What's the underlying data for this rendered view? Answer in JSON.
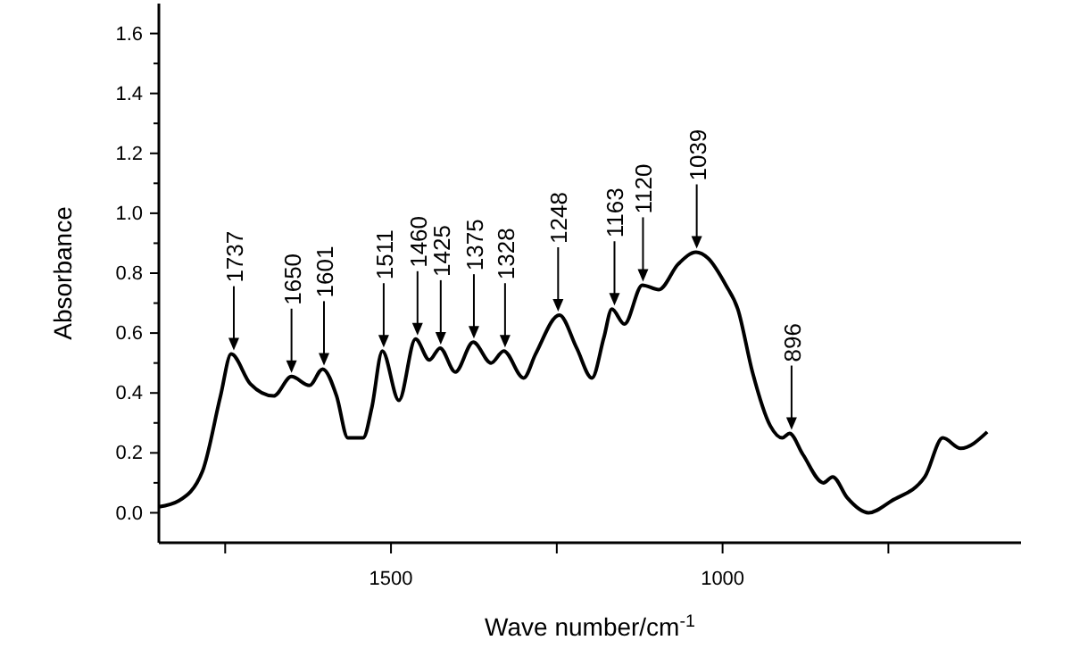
{
  "chart_data": {
    "type": "line",
    "xlabel": "Wave number/cm$^{-1}$",
    "ylabel": "Absorbance",
    "x": [
      1850,
      1820,
      1784,
      1757,
      1741,
      1712,
      1677,
      1650,
      1623,
      1603,
      1582,
      1565,
      1542,
      1529,
      1513,
      1488,
      1463,
      1442,
      1426,
      1403,
      1376,
      1349,
      1330,
      1300,
      1282,
      1246,
      1220,
      1197,
      1179,
      1167,
      1148,
      1121,
      1096,
      1067,
      1040,
      1022,
      995,
      977,
      955,
      928,
      910,
      899,
      879,
      848,
      834,
      812,
      780,
      745,
      695,
      668,
      641,
      601
    ],
    "series": [
      {
        "color": "#000000",
        "values": [
          0.02,
          0.04,
          0.14,
          0.39,
          0.53,
          0.43,
          0.39,
          0.455,
          0.425,
          0.48,
          0.39,
          0.25,
          0.25,
          0.35,
          0.54,
          0.375,
          0.58,
          0.51,
          0.55,
          0.47,
          0.57,
          0.5,
          0.54,
          0.45,
          0.53,
          0.66,
          0.55,
          0.45,
          0.585,
          0.68,
          0.63,
          0.76,
          0.745,
          0.83,
          0.87,
          0.85,
          0.76,
          0.68,
          0.47,
          0.29,
          0.25,
          0.265,
          0.195,
          0.1,
          0.12,
          0.05,
          0.0,
          0.04,
          0.12,
          0.25,
          0.215,
          0.27
        ]
      }
    ],
    "xlim": [
      1850,
      550
    ],
    "ylim": [
      -0.1,
      1.7
    ],
    "xticks": [
      {
        "value": 1750,
        "label": null
      },
      1500,
      {
        "value": 1250,
        "label": null
      },
      1000,
      {
        "value": 750,
        "label": null
      }
    ],
    "yticks": [
      {
        "value": 0,
        "label": "0.0"
      },
      {
        "value": 0.1,
        "label": null
      },
      {
        "value": 0.2,
        "label": "0.2"
      },
      {
        "value": 0.3,
        "label": null
      },
      {
        "value": 0.4,
        "label": "0.4"
      },
      {
        "value": 0.5,
        "label": null
      },
      {
        "value": 0.6,
        "label": "0.6"
      },
      {
        "value": 0.7,
        "label": null
      },
      {
        "value": 0.8,
        "label": "0.8"
      },
      {
        "value": 0.9,
        "label": null
      },
      {
        "value": 1.0,
        "label": "1.0"
      },
      {
        "value": 1.1,
        "label": null
      },
      {
        "value": 1.2,
        "label": "1.2"
      },
      {
        "value": 1.3,
        "label": null
      },
      {
        "value": 1.4,
        "label": "1.4"
      },
      {
        "value": 1.5,
        "label": null
      },
      {
        "value": 1.6,
        "label": "1.6"
      }
    ],
    "grid": false,
    "marker": "none",
    "line_style": "solid",
    "annotations": [
      {
        "text": "1737",
        "x": 1737,
        "y": 0.53
      },
      {
        "text": "1650",
        "x": 1650,
        "y": 0.455
      },
      {
        "text": "1601",
        "x": 1601,
        "y": 0.48
      },
      {
        "text": "1511",
        "x": 1511,
        "y": 0.54
      },
      {
        "text": "1460",
        "x": 1460,
        "y": 0.58
      },
      {
        "text": "1425",
        "x": 1425,
        "y": 0.55
      },
      {
        "text": "1375",
        "x": 1375,
        "y": 0.57
      },
      {
        "text": "1328",
        "x": 1328,
        "y": 0.54
      },
      {
        "text": "1248",
        "x": 1248,
        "y": 0.66
      },
      {
        "text": "1163",
        "x": 1163,
        "y": 0.68
      },
      {
        "text": "1120",
        "x": 1120,
        "y": 0.76
      },
      {
        "text": "1039",
        "x": 1039,
        "y": 0.87
      },
      {
        "text": "896",
        "x": 896,
        "y": 0.265
      }
    ]
  }
}
